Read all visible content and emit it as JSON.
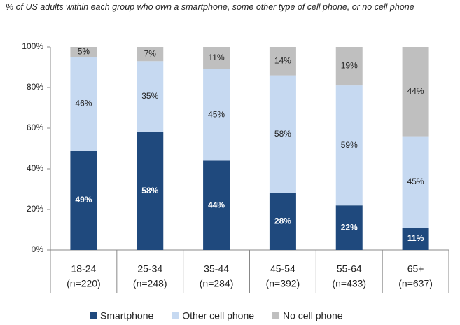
{
  "chart_data": {
    "type": "stacked-bar",
    "title": "% of US adults within each group who own a smartphone, some other type of cell phone, or no cell phone",
    "categories": [
      [
        "18-24",
        "(n=220)"
      ],
      [
        "25-34",
        "(n=248)"
      ],
      [
        "35-44",
        "(n=284)"
      ],
      [
        "45-54",
        "(n=392)"
      ],
      [
        "55-64",
        "(n=433)"
      ],
      [
        "65+",
        "(n=637)"
      ]
    ],
    "series": [
      {
        "name": "Smartphone",
        "color": "#1f497d",
        "label_color": "#ffffff",
        "values": [
          49,
          58,
          44,
          28,
          22,
          11
        ],
        "value_labels": [
          "49%",
          "58%",
          "44%",
          "28%",
          "22%",
          "11%"
        ]
      },
      {
        "name": "Other cell phone",
        "color": "#c6d9f1",
        "label_color": "#222222",
        "values": [
          46,
          35,
          45,
          58,
          59,
          45
        ],
        "value_labels": [
          "46%",
          "35%",
          "45%",
          "58%",
          "59%",
          "45%"
        ]
      },
      {
        "name": "No cell phone",
        "color": "#bfbfbf",
        "label_color": "#222222",
        "values": [
          5,
          7,
          11,
          14,
          19,
          44
        ],
        "value_labels": [
          "5%",
          "7%",
          "11%",
          "14%",
          "19%",
          "44%"
        ]
      }
    ],
    "ylim": [
      0,
      100
    ],
    "yticks": [
      {
        "value": 0,
        "label": "0%"
      },
      {
        "value": 20,
        "label": "20%"
      },
      {
        "value": 40,
        "label": "40%"
      },
      {
        "value": 60,
        "label": "60%"
      },
      {
        "value": 80,
        "label": "80%"
      },
      {
        "value": 100,
        "label": "100%"
      }
    ],
    "legend": "bottom"
  }
}
